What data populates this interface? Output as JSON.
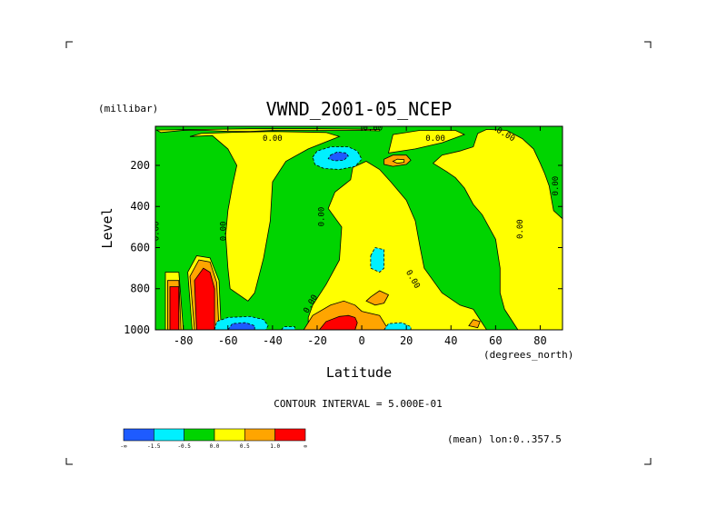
{
  "chart_data": {
    "type": "contour",
    "title": "VWND_2001-05_NCEP",
    "xlabel": "Latitude",
    "x_unit": "(degrees_north)",
    "ylabel": "Level",
    "y_unit": "(millibar)",
    "xlim": [
      -92.5,
      90
    ],
    "ylim": [
      1000,
      10
    ],
    "x_ticks": [
      -80,
      -60,
      -40,
      -20,
      0,
      20,
      40,
      60,
      80
    ],
    "y_ticks": [
      200,
      400,
      600,
      800,
      1000
    ],
    "contour_label": "0.00",
    "contour_interval_text": "CONTOUR INTERVAL = 5.000E-01",
    "averaging_text": "(mean) lon:0..357.5",
    "colorbar": {
      "colors": [
        "#1e5bff",
        "#00f0ff",
        "#00d400",
        "#ffff00",
        "#ffa500",
        "#ff0000"
      ],
      "tick_labels": [
        "-∞",
        "-1.5",
        "-0.5",
        "0.0",
        "0.5",
        "1.0",
        "∞"
      ]
    },
    "regions": [
      {
        "level": "yellow",
        "pts": [
          [
            -88,
            1000
          ],
          [
            -88,
            720
          ],
          [
            -82,
            720
          ],
          [
            -80,
            1000
          ]
        ]
      },
      {
        "level": "orange",
        "pts": [
          [
            -87,
            1000
          ],
          [
            -87,
            760
          ],
          [
            -82,
            760
          ],
          [
            -81,
            1000
          ]
        ]
      },
      {
        "level": "red",
        "pts": [
          [
            -86,
            1000
          ],
          [
            -86,
            790
          ],
          [
            -82,
            790
          ],
          [
            -82,
            1000
          ]
        ]
      },
      {
        "level": "yellow",
        "pts": [
          [
            -76,
            1000
          ],
          [
            -78,
            720
          ],
          [
            -74,
            640
          ],
          [
            -68,
            650
          ],
          [
            -64,
            760
          ],
          [
            -63,
            1000
          ]
        ]
      },
      {
        "level": "orange",
        "pts": [
          [
            -75,
            1000
          ],
          [
            -77,
            740
          ],
          [
            -73,
            660
          ],
          [
            -68,
            670
          ],
          [
            -65,
            770
          ],
          [
            -64,
            1000
          ]
        ]
      },
      {
        "level": "red",
        "pts": [
          [
            -74,
            1000
          ],
          [
            -75,
            760
          ],
          [
            -71,
            700
          ],
          [
            -68,
            720
          ],
          [
            -66,
            800
          ],
          [
            -66,
            1000
          ]
        ]
      },
      {
        "level": "yellow",
        "pts": [
          [
            -77,
            60
          ],
          [
            -67,
            55
          ],
          [
            -60,
            120
          ],
          [
            -56,
            200
          ],
          [
            -58,
            300
          ],
          [
            -60,
            420
          ],
          [
            -61,
            540
          ],
          [
            -60,
            700
          ],
          [
            -59,
            800
          ],
          [
            -51,
            860
          ],
          [
            -48,
            820
          ],
          [
            -44,
            650
          ],
          [
            -41,
            470
          ],
          [
            -40,
            280
          ],
          [
            -34,
            180
          ],
          [
            -24,
            120
          ],
          [
            -10,
            60
          ],
          [
            -16,
            40
          ],
          [
            -40,
            35
          ],
          [
            -60,
            40
          ],
          [
            -72,
            45
          ]
        ]
      },
      {
        "level": "yellow",
        "pts": [
          [
            -24,
            1000
          ],
          [
            -24,
            940
          ],
          [
            -22,
            880
          ],
          [
            -16,
            780
          ],
          [
            -10,
            660
          ],
          [
            -9,
            500
          ],
          [
            -15,
            410
          ],
          [
            -12,
            330
          ],
          [
            -5,
            270
          ],
          [
            -4,
            210
          ],
          [
            2,
            180
          ],
          [
            8,
            220
          ],
          [
            13,
            280
          ],
          [
            20,
            370
          ],
          [
            24,
            470
          ],
          [
            26,
            590
          ],
          [
            28,
            700
          ],
          [
            36,
            820
          ],
          [
            44,
            880
          ],
          [
            50,
            900
          ],
          [
            56,
            1000
          ]
        ]
      },
      {
        "level": "yellow",
        "pts": [
          [
            12,
            140
          ],
          [
            24,
            120
          ],
          [
            36,
            90
          ],
          [
            46,
            50
          ],
          [
            42,
            30
          ],
          [
            26,
            30
          ],
          [
            14,
            50
          ]
        ]
      },
      {
        "level": "yellow",
        "pts": [
          [
            32,
            190
          ],
          [
            38,
            230
          ],
          [
            42,
            260
          ],
          [
            46,
            310
          ],
          [
            50,
            390
          ],
          [
            54,
            440
          ],
          [
            60,
            560
          ],
          [
            62,
            700
          ],
          [
            62,
            820
          ],
          [
            64,
            900
          ],
          [
            70,
            1000
          ],
          [
            90,
            1000
          ],
          [
            90,
            460
          ],
          [
            86,
            420
          ],
          [
            85,
            360
          ],
          [
            84,
            300
          ],
          [
            82,
            240
          ],
          [
            80,
            190
          ],
          [
            77,
            120
          ],
          [
            72,
            70
          ],
          [
            65,
            30
          ],
          [
            56,
            25
          ],
          [
            52,
            45
          ],
          [
            50,
            110
          ],
          [
            44,
            130
          ],
          [
            36,
            150
          ]
        ]
      },
      {
        "level": "orange",
        "pts": [
          [
            -26,
            1000
          ],
          [
            -22,
            930
          ],
          [
            -14,
            880
          ],
          [
            -8,
            860
          ],
          [
            -3,
            880
          ],
          [
            0,
            910
          ],
          [
            8,
            930
          ],
          [
            12,
            1000
          ]
        ]
      },
      {
        "level": "red",
        "pts": [
          [
            -19,
            1000
          ],
          [
            -16,
            960
          ],
          [
            -10,
            935
          ],
          [
            -6,
            930
          ],
          [
            -3,
            940
          ],
          [
            -2,
            965
          ],
          [
            -3,
            1000
          ]
        ]
      },
      {
        "level": "orange",
        "pts": [
          [
            4,
            840
          ],
          [
            8,
            810
          ],
          [
            12,
            830
          ],
          [
            10,
            870
          ],
          [
            6,
            880
          ],
          [
            2,
            860
          ]
        ]
      },
      {
        "level": "orange",
        "pts": [
          [
            48,
            980
          ],
          [
            50,
            950
          ],
          [
            53,
            960
          ],
          [
            52,
            990
          ]
        ]
      },
      {
        "level": "orange",
        "pts": [
          [
            10,
            170
          ],
          [
            14,
            150
          ],
          [
            20,
            150
          ],
          [
            22,
            175
          ],
          [
            20,
            195
          ],
          [
            14,
            205
          ],
          [
            10,
            195
          ]
        ]
      },
      {
        "level": "yellow",
        "pts": [
          [
            14,
            180
          ],
          [
            16,
            170
          ],
          [
            19,
            172
          ],
          [
            19,
            185
          ],
          [
            16,
            190
          ]
        ]
      },
      {
        "level": "cyan",
        "pts": [
          [
            -22,
            160
          ],
          [
            -20,
            130
          ],
          [
            -14,
            110
          ],
          [
            -6,
            110
          ],
          [
            -2,
            130
          ],
          [
            0,
            170
          ],
          [
            -3,
            205
          ],
          [
            -10,
            220
          ],
          [
            -17,
            215
          ],
          [
            -21,
            195
          ]
        ]
      },
      {
        "level": "blue",
        "pts": [
          [
            -14,
            150
          ],
          [
            -11,
            135
          ],
          [
            -7,
            140
          ],
          [
            -6,
            155
          ],
          [
            -8,
            175
          ],
          [
            -12,
            178
          ],
          [
            -15,
            168
          ]
        ]
      },
      {
        "level": "cyan",
        "pts": [
          [
            4,
            640
          ],
          [
            6,
            600
          ],
          [
            10,
            610
          ],
          [
            10,
            700
          ],
          [
            8,
            720
          ],
          [
            4,
            700
          ]
        ]
      },
      {
        "level": "cyan",
        "pts": [
          [
            -66,
            1000
          ],
          [
            -65,
            960
          ],
          [
            -60,
            940
          ],
          [
            -50,
            935
          ],
          [
            -44,
            950
          ],
          [
            -42,
            980
          ],
          [
            -43,
            1000
          ]
        ]
      },
      {
        "level": "blue",
        "pts": [
          [
            -60,
            1000
          ],
          [
            -58,
            970
          ],
          [
            -52,
            965
          ],
          [
            -48,
            980
          ],
          [
            -48,
            1000
          ]
        ]
      },
      {
        "level": "cyan",
        "pts": [
          [
            10,
            1000
          ],
          [
            12,
            970
          ],
          [
            18,
            965
          ],
          [
            22,
            985
          ],
          [
            22,
            1000
          ]
        ]
      },
      {
        "level": "cyan",
        "pts": [
          [
            -36,
            1000
          ],
          [
            -35,
            985
          ],
          [
            -30,
            985
          ],
          [
            -30,
            1000
          ]
        ]
      },
      {
        "level": "yellow",
        "pts": [
          [
            -90,
            40
          ],
          [
            -80,
            30
          ],
          [
            -70,
            30
          ],
          [
            -60,
            35
          ],
          [
            -50,
            35
          ],
          [
            -40,
            30
          ],
          [
            -30,
            30
          ],
          [
            -20,
            30
          ],
          [
            -10,
            30
          ],
          [
            0,
            30
          ],
          [
            8,
            32
          ],
          [
            8,
            26
          ],
          [
            0,
            24
          ],
          [
            -20,
            22
          ],
          [
            -50,
            22
          ],
          [
            -92,
            28
          ]
        ]
      }
    ],
    "contour_labels": [
      {
        "text": "0.00",
        "x": -40,
        "y": 80,
        "rot": 0
      },
      {
        "text": "0.00",
        "x": 33,
        "y": 80,
        "rot": 0
      },
      {
        "text": "0.00",
        "x": 64,
        "y": 60,
        "rot": 30
      },
      {
        "text": "0.00",
        "x": 5,
        "y": 30,
        "rot": 0
      },
      {
        "text": "0.00",
        "x": -91,
        "y": 520,
        "rot": -90
      },
      {
        "text": "0.00",
        "x": -61,
        "y": 520,
        "rot": -90
      },
      {
        "text": "0.00",
        "x": -17,
        "y": 450,
        "rot": -90
      },
      {
        "text": "0.00",
        "x": 72,
        "y": 510,
        "rot": -90
      },
      {
        "text": "0.00",
        "x": 88,
        "y": 300,
        "rot": -90
      },
      {
        "text": "0.00",
        "x": 22,
        "y": 760,
        "rot": 60
      },
      {
        "text": "0.00",
        "x": -22,
        "y": 880,
        "rot": -60
      }
    ]
  }
}
